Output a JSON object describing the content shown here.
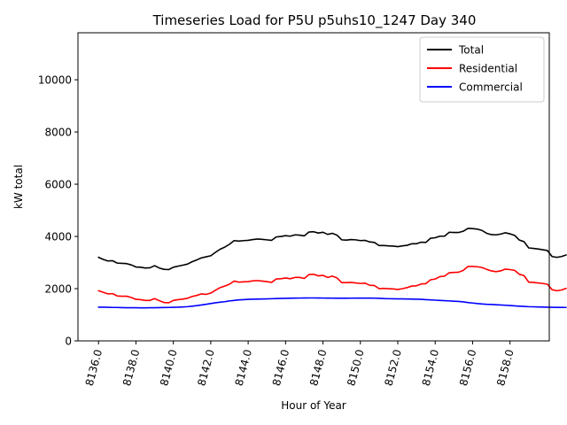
{
  "chart_data": {
    "type": "line",
    "title": "Timeseries Load for P5U p5uhs10_1247  Day 340",
    "xlabel": "Hour of Year",
    "ylabel": "kW total",
    "xlim": [
      8134.9,
      8160.1
    ],
    "ylim": [
      0,
      11800
    ],
    "x_ticks": [
      8136,
      8138,
      8140,
      8142,
      8144,
      8146,
      8148,
      8150,
      8152,
      8154,
      8156,
      8158
    ],
    "x_tick_labels": [
      "8136.0",
      "8138.0",
      "8140.0",
      "8142.0",
      "8144.0",
      "8146.0",
      "8148.0",
      "8150.0",
      "8152.0",
      "8154.0",
      "8156.0",
      "8158.0"
    ],
    "y_ticks": [
      0,
      2000,
      4000,
      6000,
      8000,
      10000
    ],
    "y_tick_labels": [
      "0",
      "2000",
      "4000",
      "6000",
      "8000",
      "10000"
    ],
    "grid": false,
    "legend_position": "top-right",
    "x_start": 8136,
    "x_step": 0.25,
    "series": [
      {
        "name": "Total",
        "color": "#000000",
        "values": [
          3200,
          3120,
          3060,
          3070,
          2980,
          2970,
          2960,
          2910,
          2830,
          2820,
          2790,
          2800,
          2880,
          2790,
          2740,
          2730,
          2820,
          2860,
          2900,
          2940,
          3030,
          3100,
          3180,
          3220,
          3260,
          3390,
          3510,
          3590,
          3700,
          3840,
          3820,
          3840,
          3850,
          3880,
          3900,
          3890,
          3870,
          3850,
          3980,
          4000,
          4030,
          4010,
          4060,
          4050,
          4020,
          4170,
          4180,
          4130,
          4160,
          4080,
          4120,
          4050,
          3870,
          3860,
          3880,
          3870,
          3840,
          3850,
          3790,
          3770,
          3650,
          3650,
          3640,
          3630,
          3610,
          3640,
          3660,
          3720,
          3720,
          3780,
          3770,
          3930,
          3950,
          4010,
          4010,
          4160,
          4150,
          4150,
          4200,
          4310,
          4300,
          4280,
          4230,
          4120,
          4070,
          4060,
          4090,
          4140,
          4100,
          4040,
          3860,
          3800,
          3560,
          3540,
          3520,
          3490,
          3460,
          3230,
          3200,
          3230,
          3290
        ]
      },
      {
        "name": "Residential",
        "color": "#ff0000",
        "values": [
          1920,
          1860,
          1800,
          1810,
          1720,
          1710,
          1710,
          1660,
          1590,
          1580,
          1550,
          1550,
          1620,
          1540,
          1470,
          1460,
          1550,
          1580,
          1600,
          1630,
          1700,
          1740,
          1800,
          1780,
          1830,
          1940,
          2040,
          2100,
          2170,
          2290,
          2250,
          2260,
          2270,
          2300,
          2310,
          2290,
          2270,
          2240,
          2370,
          2380,
          2410,
          2380,
          2430,
          2430,
          2390,
          2540,
          2550,
          2490,
          2510,
          2430,
          2480,
          2410,
          2230,
          2230,
          2240,
          2220,
          2200,
          2210,
          2130,
          2120,
          2000,
          2010,
          2000,
          1990,
          1970,
          2000,
          2040,
          2100,
          2110,
          2180,
          2190,
          2340,
          2370,
          2460,
          2480,
          2610,
          2620,
          2630,
          2700,
          2850,
          2850,
          2840,
          2810,
          2740,
          2680,
          2650,
          2680,
          2750,
          2730,
          2700,
          2550,
          2500,
          2250,
          2240,
          2220,
          2200,
          2170,
          1960,
          1920,
          1950,
          2010
        ]
      },
      {
        "name": "Commercial",
        "color": "#0000ff",
        "values": [
          1290,
          1290,
          1285,
          1280,
          1280,
          1275,
          1270,
          1270,
          1268,
          1265,
          1265,
          1268,
          1270,
          1275,
          1278,
          1280,
          1285,
          1290,
          1300,
          1310,
          1330,
          1350,
          1375,
          1400,
          1430,
          1460,
          1480,
          1500,
          1530,
          1550,
          1570,
          1580,
          1590,
          1595,
          1600,
          1605,
          1610,
          1615,
          1620,
          1625,
          1630,
          1635,
          1638,
          1640,
          1642,
          1645,
          1645,
          1643,
          1640,
          1638,
          1636,
          1635,
          1635,
          1635,
          1636,
          1637,
          1637,
          1638,
          1638,
          1636,
          1630,
          1620,
          1615,
          1612,
          1610,
          1608,
          1605,
          1600,
          1595,
          1590,
          1580,
          1570,
          1560,
          1550,
          1540,
          1530,
          1520,
          1510,
          1495,
          1470,
          1450,
          1430,
          1415,
          1400,
          1395,
          1385,
          1375,
          1365,
          1355,
          1340,
          1330,
          1320,
          1310,
          1305,
          1300,
          1295,
          1290,
          1285,
          1283,
          1282,
          1280
        ]
      }
    ]
  }
}
